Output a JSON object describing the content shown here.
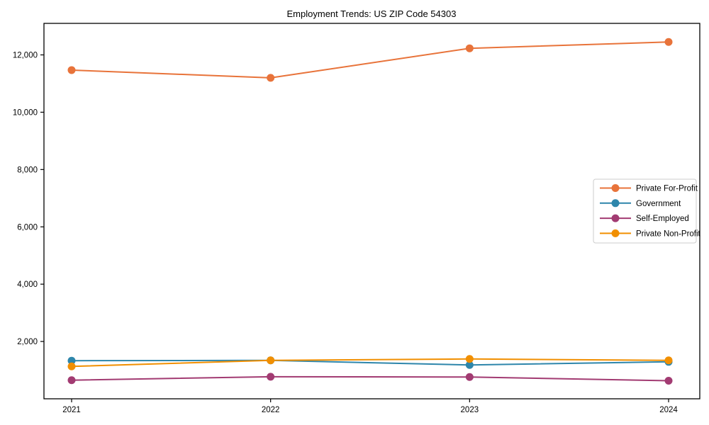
{
  "chart_data": {
    "type": "line",
    "title": "Employment Trends: US ZIP Code 54303",
    "categories": [
      "2021",
      "2022",
      "2023",
      "2024"
    ],
    "series": [
      {
        "name": "Private For-Profit",
        "color": "#E8733A",
        "values": [
          11470,
          11200,
          12230,
          12450
        ]
      },
      {
        "name": "Government",
        "color": "#2E86AB",
        "values": [
          1330,
          1340,
          1180,
          1290
        ]
      },
      {
        "name": "Self-Employed",
        "color": "#A23B72",
        "values": [
          650,
          770,
          760,
          630
        ]
      },
      {
        "name": "Private Non-Profit",
        "color": "#F18F01",
        "values": [
          1130,
          1340,
          1390,
          1340
        ]
      }
    ],
    "xlabel": "",
    "ylabel": "",
    "ylim": [
      0,
      13100
    ],
    "yticks": [
      2000,
      4000,
      6000,
      8000,
      10000,
      12000
    ],
    "ytick_labels": [
      "2,000",
      "4,000",
      "6,000",
      "8,000",
      "10,000",
      "12,000"
    ],
    "grid": false,
    "legend_position": "center-right",
    "axis_color": "#000000",
    "legend_border_color": "#cccccc",
    "background_color": "#ffffff"
  }
}
